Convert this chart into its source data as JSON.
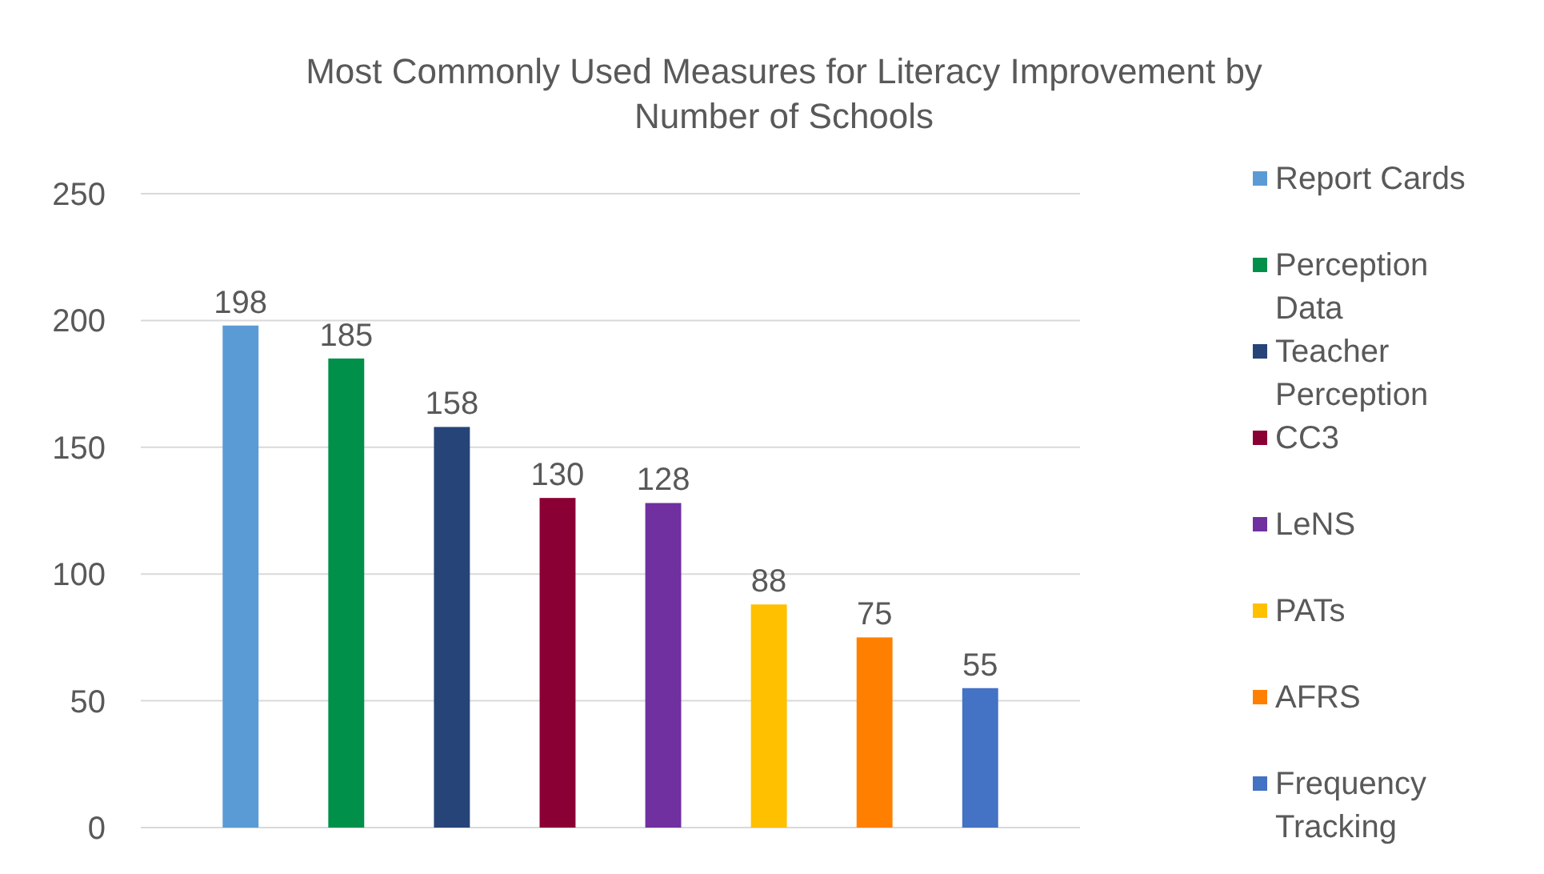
{
  "chart_data": {
    "type": "bar",
    "title": "Most Commonly Used Measures for Literacy Improvement by Number of Schools",
    "categories": [
      null
    ],
    "ylim": [
      0,
      250
    ],
    "yticks": [
      0,
      50,
      100,
      150,
      200,
      250
    ],
    "grid": "y",
    "legend": "right",
    "data_labels": true,
    "series": [
      {
        "name": "Report Cards",
        "color": "#5b9bd5",
        "values": [
          198
        ]
      },
      {
        "name": "Perception Data",
        "color": "#00904a",
        "values": [
          185
        ]
      },
      {
        "name": "Teacher Perception",
        "color": "#264478",
        "values": [
          158
        ]
      },
      {
        "name": "CC3",
        "color": "#8b0034",
        "values": [
          130
        ]
      },
      {
        "name": "LeNS",
        "color": "#7030a0",
        "values": [
          128
        ]
      },
      {
        "name": "PATs",
        "color": "#ffc000",
        "values": [
          88
        ]
      },
      {
        "name": "AFRS",
        "color": "#ff8000",
        "values": [
          75
        ]
      },
      {
        "name": "Frequency Tracking",
        "color": "#4472c4",
        "values": [
          55
        ]
      }
    ]
  }
}
